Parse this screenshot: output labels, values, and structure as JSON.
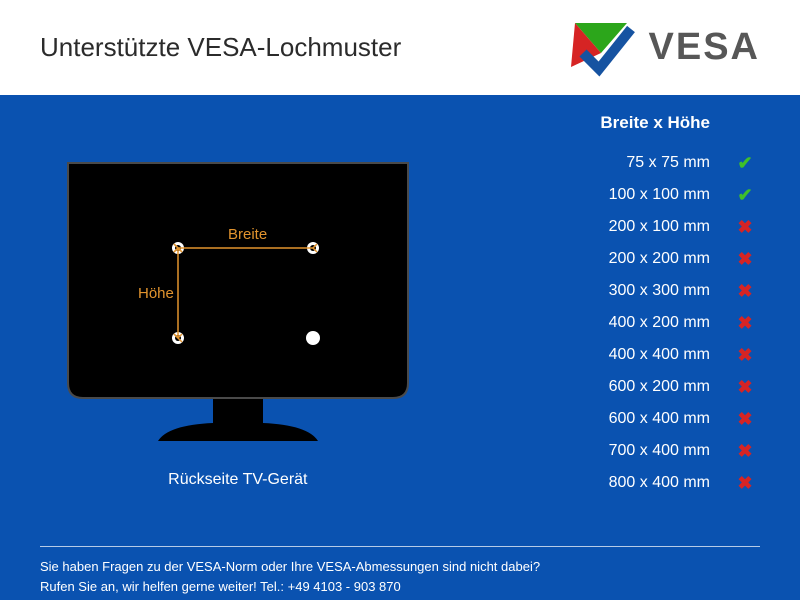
{
  "header": {
    "title": "Unterstützte VESA-Lochmuster",
    "logo_text": "VESA",
    "logo": {
      "top_triangle": "#2ca61b",
      "left_triangle": "#d62424",
      "right_check": "#1653a1",
      "text_color": "#575757"
    }
  },
  "main": {
    "background_color": "#0a52b0",
    "panel_background": "#0a52b0"
  },
  "tv": {
    "body_color": "#000000",
    "stroke": "#4a4a4a",
    "hole_fill": "#ffffff",
    "dim_color": "#e2942e",
    "label_width": "Breite",
    "label_height": "Höhe",
    "caption": "Rückseite TV-Gerät"
  },
  "table": {
    "header": "Breite x Höhe",
    "check_color": "#3fbf2a",
    "cross_color": "#d62424",
    "rows": [
      {
        "label": "75 x 75 mm",
        "supported": true
      },
      {
        "label": "100 x 100 mm",
        "supported": true
      },
      {
        "label": "200 x 100 mm",
        "supported": false
      },
      {
        "label": "200 x 200 mm",
        "supported": false
      },
      {
        "label": "300 x 300 mm",
        "supported": false
      },
      {
        "label": "400 x 200 mm",
        "supported": false
      },
      {
        "label": "400 x 400 mm",
        "supported": false
      },
      {
        "label": "600 x 200 mm",
        "supported": false
      },
      {
        "label": "600 x 400 mm",
        "supported": false
      },
      {
        "label": "700 x 400 mm",
        "supported": false
      },
      {
        "label": "800 x 400 mm",
        "supported": false
      }
    ]
  },
  "footer": {
    "line1": "Sie haben Fragen zu der VESA-Norm oder Ihre VESA-Abmessungen sind nicht dabei?",
    "line2": "Rufen Sie an, wir helfen gerne weiter! Tel.: +49 4103 - 903 870"
  }
}
